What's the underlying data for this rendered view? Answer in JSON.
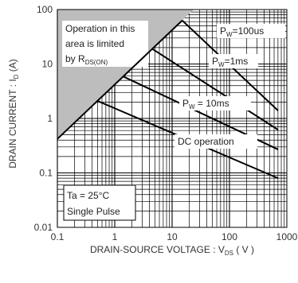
{
  "chart_data": {
    "type": "line",
    "xscale": "log",
    "yscale": "log",
    "xlim": [
      0.1,
      1000
    ],
    "ylim": [
      0.01,
      100
    ],
    "grid": true,
    "xlabel": {
      "main": "DRAIN-SOURCE VOLTAGE : V",
      "sub": "DS",
      "suffix": " ( V )"
    },
    "ylabel": {
      "main": "DRAIN CURRENT : I",
      "sub": "D",
      "suffix": " (A)"
    },
    "xticks": [
      {
        "value": 0.1,
        "label": "0.1"
      },
      {
        "value": 1,
        "label": "1"
      },
      {
        "value": 10,
        "label": "10"
      },
      {
        "value": 100,
        "label": "100"
      },
      {
        "value": 1000,
        "label": "1000"
      }
    ],
    "yticks": [
      {
        "value": 100,
        "label": "100"
      },
      {
        "value": 10,
        "label": "10"
      },
      {
        "value": 1,
        "label": "1"
      },
      {
        "value": 0.1,
        "label": "0.1"
      },
      {
        "value": 0.01,
        "label": "0.01"
      }
    ],
    "rdson_line": [
      [
        0.1,
        0.42
      ],
      [
        15,
        63
      ]
    ],
    "current_limit": 63,
    "series": [
      {
        "label_main": "P",
        "label_sub": "W",
        "label_suffix": "=100us",
        "points": [
          [
            15,
            63
          ],
          [
            700,
            1.4
          ]
        ]
      },
      {
        "label_main": "P",
        "label_sub": "W",
        "label_suffix": "=1ms",
        "points": [
          [
            4.5,
            19
          ],
          [
            700,
            0.62
          ]
        ]
      },
      {
        "label_main": "P",
        "label_sub": "W",
        "label_suffix": " = 10ms",
        "points": [
          [
            1.4,
            5.9
          ],
          [
            700,
            0.27
          ]
        ]
      },
      {
        "label_main": "DC operation",
        "label_sub": "",
        "label_suffix": "",
        "points": [
          [
            0.5,
            2.1
          ],
          [
            700,
            0.08
          ]
        ]
      }
    ],
    "annotations": {
      "limited_region": [
        "Operation in this",
        "area is limited"
      ],
      "limited_by": {
        "main": "by R",
        "sub": "DS(ON)"
      },
      "conditions": [
        "Ta = 25°C",
        "Single Pulse"
      ]
    }
  }
}
